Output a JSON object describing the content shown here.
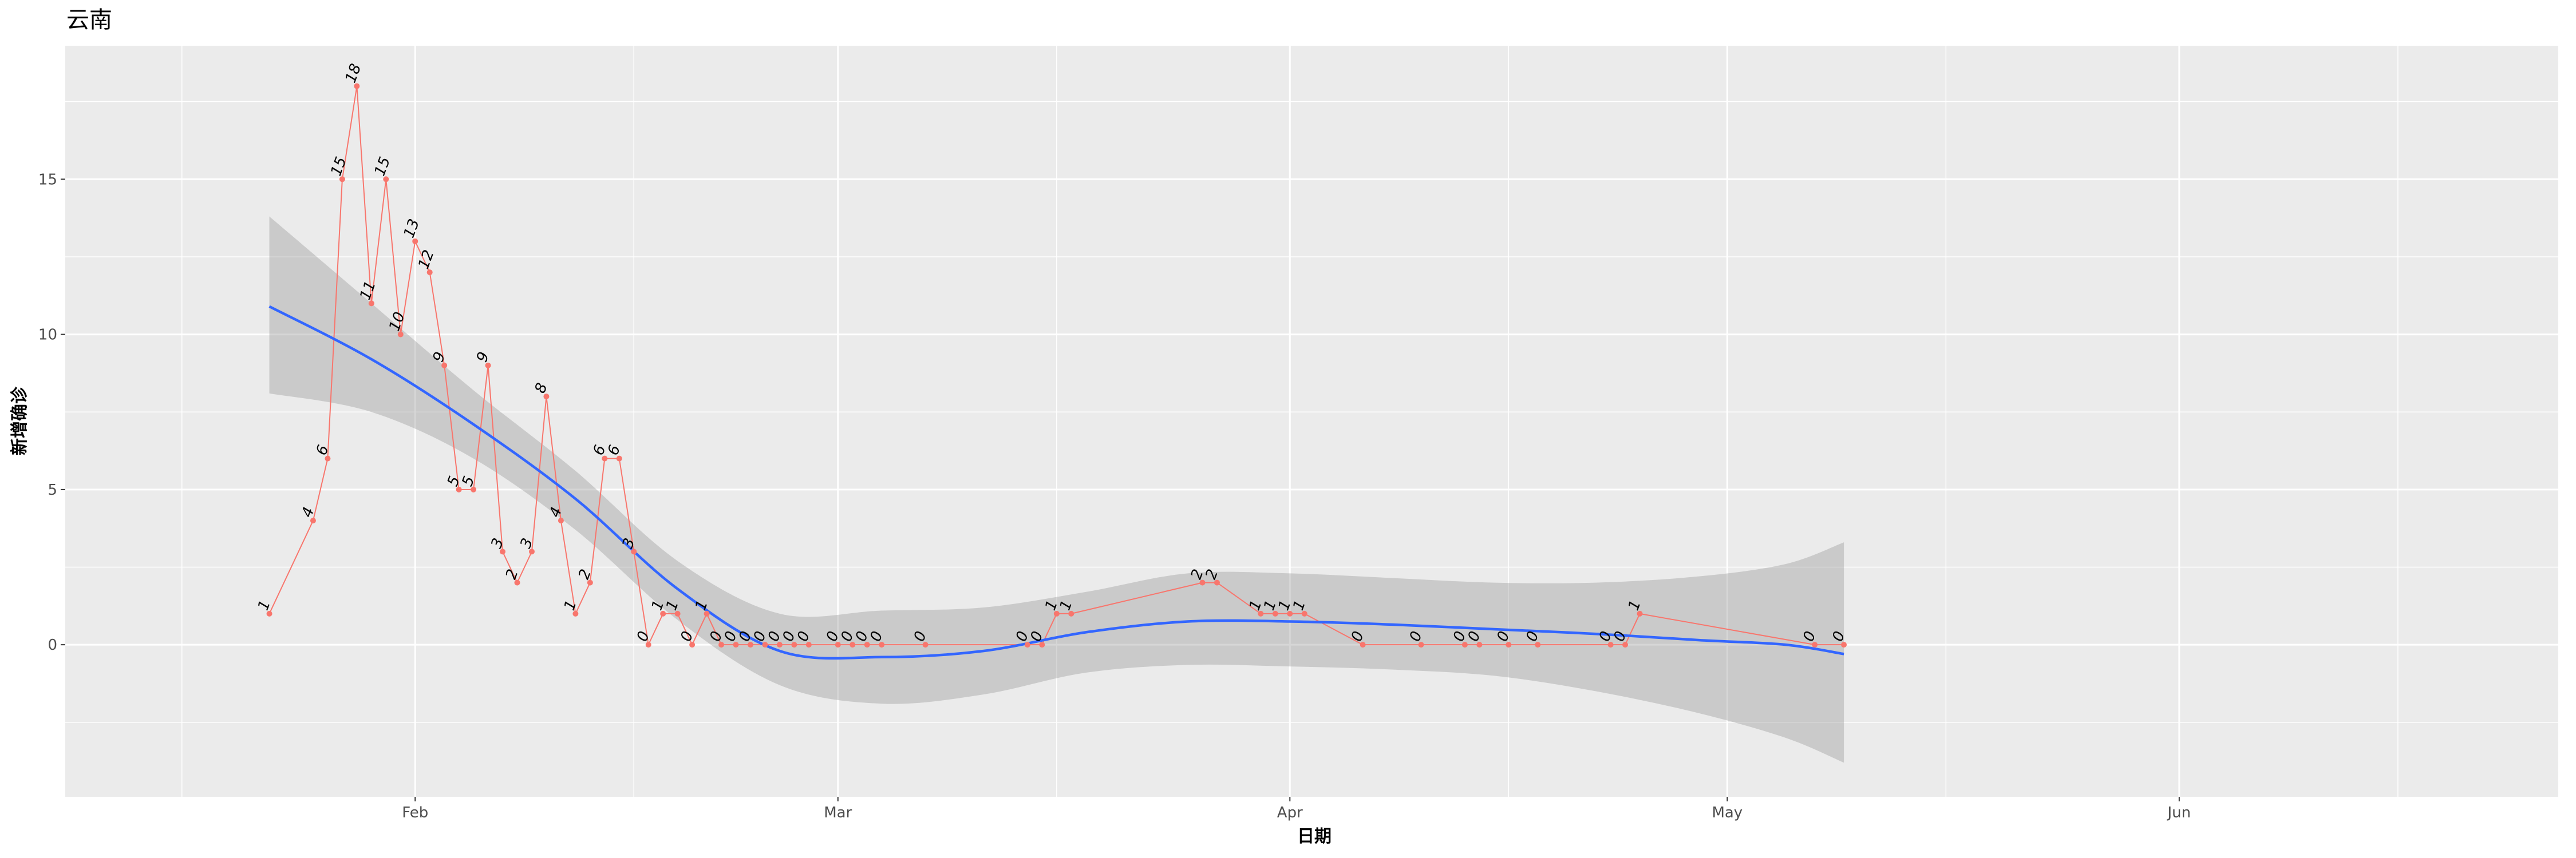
{
  "chart_data": {
    "type": "line",
    "title": "云南",
    "xlabel": "日期",
    "ylabel": "新增确诊",
    "x_range": [
      "2020-01-08",
      "2020-06-27"
    ],
    "ylim": [
      -4.9,
      19.3
    ],
    "x_ticks": [
      {
        "date": "2020-02-01",
        "label": "Feb"
      },
      {
        "date": "2020-03-01",
        "label": "Mar"
      },
      {
        "date": "2020-04-01",
        "label": "Apr"
      },
      {
        "date": "2020-05-01",
        "label": "May"
      },
      {
        "date": "2020-06-01",
        "label": "Jun"
      }
    ],
    "x_minor_ticks": [
      "2020-01-16",
      "2020-02-16",
      "2020-03-16",
      "2020-04-16",
      "2020-05-16",
      "2020-06-16"
    ],
    "y_ticks": [
      0,
      5,
      10,
      15
    ],
    "y_minor_ticks": [
      -2.5,
      2.5,
      7.5,
      12.5,
      17.5
    ],
    "grid": true,
    "legend": "none",
    "colors": {
      "panel": "#ebebeb",
      "grid": "#ffffff",
      "series": "#f8766d",
      "smooth": "#3366ff",
      "ribbon": "#999999"
    },
    "series": [
      {
        "style": "line+points+labels",
        "x": [
          "2020-01-22",
          "2020-01-25",
          "2020-01-26",
          "2020-01-27",
          "2020-01-28",
          "2020-01-29",
          "2020-01-30",
          "2020-01-31",
          "2020-02-01",
          "2020-02-02",
          "2020-02-03",
          "2020-02-04",
          "2020-02-05",
          "2020-02-06",
          "2020-02-07",
          "2020-02-08",
          "2020-02-09",
          "2020-02-10",
          "2020-02-11",
          "2020-02-12",
          "2020-02-13",
          "2020-02-14",
          "2020-02-15",
          "2020-02-16",
          "2020-02-17",
          "2020-02-18",
          "2020-02-19",
          "2020-02-20",
          "2020-02-21",
          "2020-02-22",
          "2020-02-23",
          "2020-02-24",
          "2020-02-25",
          "2020-02-26",
          "2020-02-27",
          "2020-02-28",
          "2020-03-01",
          "2020-03-02",
          "2020-03-03",
          "2020-03-04",
          "2020-03-07",
          "2020-03-14",
          "2020-03-15",
          "2020-03-16",
          "2020-03-17",
          "2020-03-26",
          "2020-03-27",
          "2020-03-30",
          "2020-03-31",
          "2020-04-01",
          "2020-04-02",
          "2020-04-06",
          "2020-04-10",
          "2020-04-13",
          "2020-04-14",
          "2020-04-16",
          "2020-04-18",
          "2020-04-23",
          "2020-04-24",
          "2020-04-25",
          "2020-05-07",
          "2020-05-09"
        ],
        "y": [
          1,
          4,
          6,
          15,
          18,
          11,
          15,
          10,
          13,
          12,
          9,
          5,
          5,
          9,
          3,
          2,
          3,
          8,
          4,
          1,
          2,
          6,
          6,
          3,
          0,
          1,
          1,
          0,
          1,
          0,
          0,
          0,
          0,
          0,
          0,
          0,
          0,
          0,
          0,
          0,
          0,
          0,
          0,
          1,
          1,
          2,
          2,
          1,
          1,
          1,
          1,
          0,
          0,
          0,
          0,
          0,
          0,
          0,
          0,
          1,
          0,
          0
        ]
      },
      {
        "style": "smooth",
        "method": "loess",
        "x": [
          "2020-01-22",
          "2020-01-29",
          "2020-02-05",
          "2020-02-12",
          "2020-02-19",
          "2020-02-26",
          "2020-03-04",
          "2020-03-11",
          "2020-03-18",
          "2020-03-25",
          "2020-04-01",
          "2020-04-08",
          "2020-04-15",
          "2020-04-22",
          "2020-04-29",
          "2020-05-05",
          "2020-05-09"
        ],
        "y": [
          10.9,
          9.2,
          7.1,
          4.7,
          1.8,
          -0.2,
          -0.4,
          -0.2,
          0.4,
          0.75,
          0.75,
          0.65,
          0.5,
          0.35,
          0.15,
          0.0,
          -0.3
        ],
        "ci_lower": [
          8.1,
          7.5,
          6.0,
          3.7,
          0.8,
          -1.3,
          -1.9,
          -1.6,
          -0.9,
          -0.65,
          -0.7,
          -0.8,
          -1.0,
          -1.5,
          -2.2,
          -3.0,
          -3.8
        ],
        "ci_upper": [
          13.8,
          11.0,
          8.2,
          5.6,
          2.7,
          1.0,
          1.1,
          1.2,
          1.7,
          2.3,
          2.3,
          2.15,
          2.0,
          2.0,
          2.2,
          2.6,
          3.3
        ]
      }
    ]
  }
}
